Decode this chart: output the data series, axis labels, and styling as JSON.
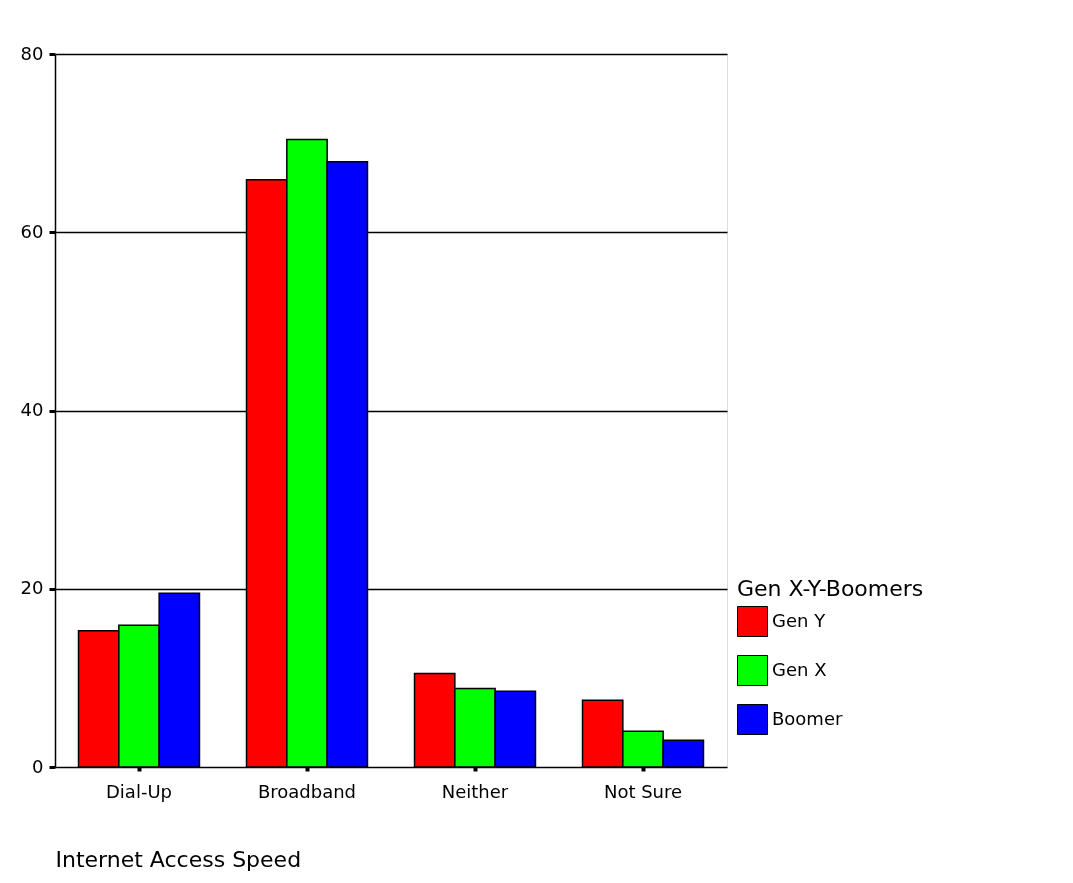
{
  "chart_data": {
    "type": "bar",
    "xlabel": "Internet Access Speed",
    "legend_title": "Gen X-Y-Boomers",
    "categories": [
      "Dial-Up",
      "Broadband",
      "Neither",
      "Not Sure"
    ],
    "series": [
      {
        "name": "Gen Y",
        "color": "#ff0000",
        "values": [
          15.3,
          65.9,
          10.5,
          7.5
        ]
      },
      {
        "name": "Gen X",
        "color": "#00ff00",
        "values": [
          15.9,
          70.4,
          8.8,
          4.0
        ]
      },
      {
        "name": "Boomer",
        "color": "#0000ff",
        "values": [
          19.5,
          67.9,
          8.5,
          3.0
        ]
      }
    ],
    "ylim": [
      0,
      80
    ],
    "yticks": [
      0,
      20,
      40,
      60,
      80
    ],
    "grid": "y",
    "legend": "right"
  }
}
